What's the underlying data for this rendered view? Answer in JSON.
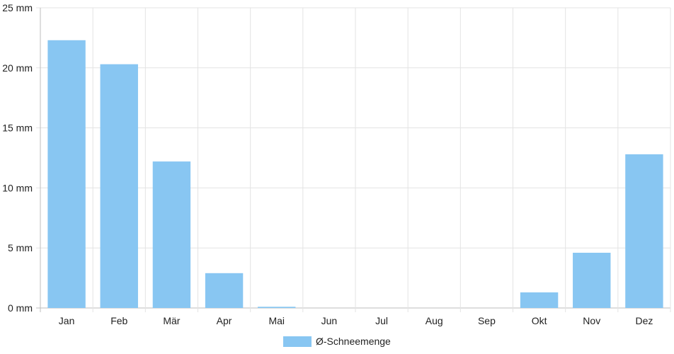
{
  "chart_data": {
    "type": "bar",
    "categories": [
      "Jan",
      "Feb",
      "Mär",
      "Apr",
      "Mai",
      "Jun",
      "Jul",
      "Aug",
      "Sep",
      "Okt",
      "Nov",
      "Dez"
    ],
    "series": [
      {
        "name": "Ø-Schneemenge",
        "values": [
          22.3,
          20.3,
          12.2,
          2.9,
          0.1,
          0,
          0,
          0,
          0,
          1.3,
          4.6,
          12.8
        ],
        "color": "#88c6f2"
      }
    ],
    "y_ticks": [
      "0 mm",
      "5 mm",
      "10 mm",
      "15 mm",
      "20 mm",
      "25 mm"
    ],
    "ylim": [
      0,
      25
    ],
    "grid": true,
    "legend_position": "bottom"
  }
}
